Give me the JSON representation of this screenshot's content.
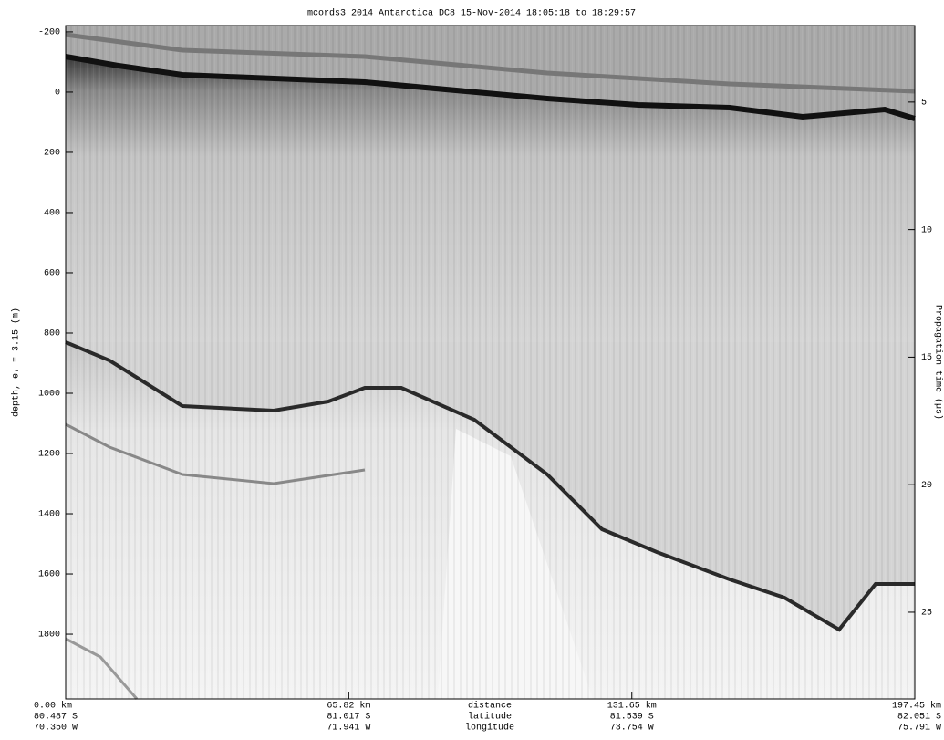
{
  "chart_data": {
    "type": "radargram",
    "title": "mcords3 2014 Antarctica DC8 15-Nov-2014 18:05:18 to 18:29:57",
    "y_label": "depth, eᵣ = 3.15 (m)",
    "y2_label": "Propagation time (µs)",
    "x_label": "distance",
    "latitude_label": "latitude",
    "longitude_label": "longitude",
    "ylim": [
      -221,
      2015
    ],
    "yticks": [
      -200,
      0,
      200,
      400,
      600,
      800,
      1000,
      1200,
      1400,
      1600,
      1800
    ],
    "y2lim": [
      2.0,
      28.4
    ],
    "y2ticks": [
      5,
      10,
      15,
      20,
      25
    ],
    "xlim": [
      0,
      197.45
    ],
    "xticks": [
      {
        "value": 0,
        "label": "0.00 km"
      },
      {
        "value": 65.82,
        "label": "65.82 km"
      },
      {
        "value": 131.65,
        "label": "131.65 km"
      },
      {
        "value": 197.45,
        "label": "197.45 km"
      }
    ],
    "latitudes": [
      "80.487 S",
      "81.017 S",
      "81.539 S",
      "82.051 S"
    ],
    "longitudes": [
      "70.350 W",
      "71.941 W",
      "73.754 W",
      "75.791 W"
    ]
  }
}
